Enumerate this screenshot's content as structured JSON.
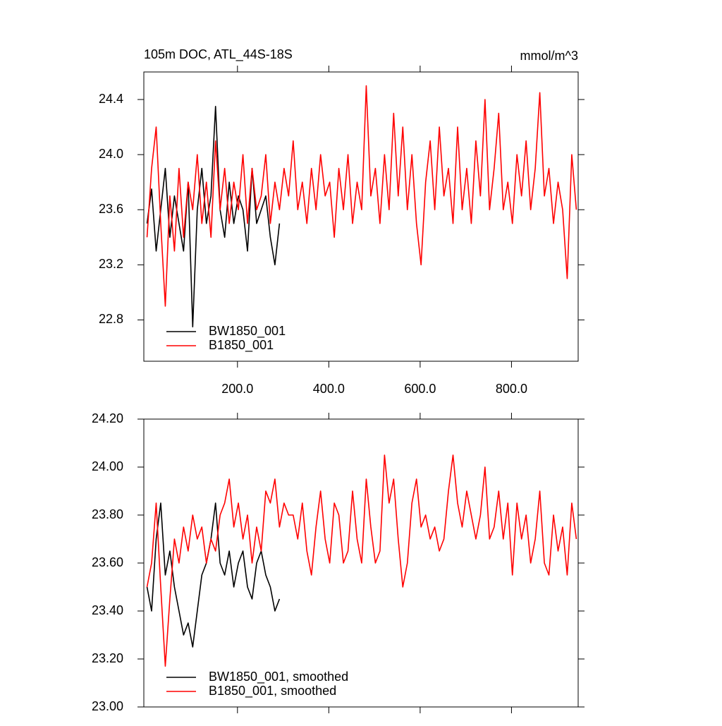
{
  "chart_data": [
    {
      "type": "line",
      "title": "105m DOC, ATL_44S-18S",
      "units": "mmol/m^3",
      "xlim": [
        -5,
        946
      ],
      "ylim": [
        22.5,
        24.6
      ],
      "xticks": [
        {
          "value": 200,
          "label": "200.0"
        },
        {
          "value": 400,
          "label": "400.0"
        },
        {
          "value": 600,
          "label": "600.0"
        },
        {
          "value": 800,
          "label": "800.0"
        }
      ],
      "yticks": [
        {
          "value": 22.8,
          "label": "22.8"
        },
        {
          "value": 23.2,
          "label": "23.2"
        },
        {
          "value": 23.6,
          "label": "23.6"
        },
        {
          "value": 24.0,
          "label": "24.0"
        },
        {
          "value": 24.4,
          "label": "24.4"
        }
      ],
      "legend": "lower left",
      "series": [
        {
          "name": "BW1850_001",
          "color": "#000000",
          "x": [
            2,
            12,
            22,
            32,
            42,
            52,
            62,
            72,
            82,
            92,
            102,
            112,
            122,
            132,
            142,
            152,
            162,
            172,
            182,
            192,
            202,
            212,
            222,
            232,
            242,
            252,
            262,
            272,
            282,
            292
          ],
          "values": [
            23.5,
            23.75,
            23.3,
            23.6,
            23.9,
            23.4,
            23.7,
            23.5,
            23.3,
            23.8,
            22.75,
            23.6,
            23.9,
            23.5,
            23.7,
            24.35,
            23.6,
            23.4,
            23.8,
            23.5,
            23.7,
            23.6,
            23.3,
            23.9,
            23.5,
            23.6,
            23.7,
            23.4,
            23.2,
            23.5
          ]
        },
        {
          "name": "B1850_001",
          "color": "#ff0000",
          "x": [
            2,
            12,
            22,
            32,
            42,
            52,
            62,
            72,
            82,
            92,
            102,
            112,
            122,
            132,
            142,
            152,
            162,
            172,
            182,
            192,
            202,
            212,
            222,
            232,
            242,
            252,
            262,
            272,
            282,
            292,
            302,
            312,
            322,
            332,
            342,
            352,
            362,
            372,
            382,
            392,
            402,
            412,
            422,
            432,
            442,
            452,
            462,
            472,
            482,
            492,
            502,
            512,
            522,
            532,
            542,
            552,
            562,
            572,
            582,
            592,
            602,
            612,
            622,
            632,
            642,
            652,
            662,
            672,
            682,
            692,
            702,
            712,
            722,
            732,
            742,
            752,
            762,
            772,
            782,
            792,
            802,
            812,
            822,
            832,
            842,
            852,
            862,
            872,
            882,
            892,
            902,
            912,
            922,
            932,
            942
          ],
          "values": [
            23.4,
            23.9,
            24.2,
            23.5,
            22.9,
            23.7,
            23.3,
            23.9,
            23.4,
            23.8,
            23.6,
            24.0,
            23.5,
            23.8,
            23.4,
            24.1,
            23.6,
            23.9,
            23.5,
            23.8,
            23.6,
            24.0,
            23.5,
            23.9,
            23.6,
            23.7,
            24.0,
            23.5,
            23.8,
            23.6,
            23.9,
            23.7,
            24.1,
            23.6,
            23.8,
            23.5,
            23.9,
            23.6,
            24.0,
            23.7,
            23.8,
            23.4,
            23.9,
            23.6,
            24.0,
            23.5,
            23.8,
            23.6,
            24.5,
            23.7,
            23.9,
            23.5,
            24.0,
            23.6,
            24.3,
            23.7,
            24.2,
            23.6,
            24.0,
            23.5,
            23.2,
            23.8,
            24.1,
            23.6,
            24.2,
            23.7,
            23.9,
            23.5,
            24.2,
            23.6,
            23.9,
            23.5,
            24.1,
            23.7,
            24.4,
            23.6,
            23.9,
            24.3,
            23.6,
            23.8,
            23.5,
            24.0,
            23.7,
            24.1,
            23.6,
            23.9,
            24.45,
            23.7,
            23.9,
            23.5,
            23.8,
            23.6,
            23.1,
            24.0,
            23.6
          ]
        }
      ]
    },
    {
      "type": "line",
      "xlim": [
        -5,
        946
      ],
      "ylim": [
        23.0,
        24.2
      ],
      "xticks": [
        200,
        400,
        600,
        800
      ],
      "yticks": [
        {
          "value": 23.0,
          "label": "23.00"
        },
        {
          "value": 23.2,
          "label": "23.20"
        },
        {
          "value": 23.4,
          "label": "23.40"
        },
        {
          "value": 23.6,
          "label": "23.60"
        },
        {
          "value": 23.8,
          "label": "23.80"
        },
        {
          "value": 24.0,
          "label": "24.00"
        },
        {
          "value": 24.2,
          "label": "24.20"
        }
      ],
      "legend": "lower left",
      "series": [
        {
          "name": "BW1850_001, smoothed",
          "color": "#000000",
          "x": [
            2,
            12,
            22,
            32,
            42,
            52,
            62,
            72,
            82,
            92,
            102,
            112,
            122,
            132,
            142,
            152,
            162,
            172,
            182,
            192,
            202,
            212,
            222,
            232,
            242,
            252,
            262,
            272,
            282,
            292
          ],
          "values": [
            23.5,
            23.4,
            23.7,
            23.85,
            23.55,
            23.65,
            23.5,
            23.4,
            23.3,
            23.35,
            23.25,
            23.4,
            23.55,
            23.6,
            23.7,
            23.85,
            23.6,
            23.55,
            23.65,
            23.5,
            23.6,
            23.65,
            23.5,
            23.45,
            23.6,
            23.65,
            23.55,
            23.5,
            23.4,
            23.45
          ]
        },
        {
          "name": "B1850_001, smoothed",
          "color": "#ff0000",
          "x": [
            2,
            12,
            22,
            32,
            42,
            52,
            62,
            72,
            82,
            92,
            102,
            112,
            122,
            132,
            142,
            152,
            162,
            172,
            182,
            192,
            202,
            212,
            222,
            232,
            242,
            252,
            262,
            272,
            282,
            292,
            302,
            312,
            322,
            332,
            342,
            352,
            362,
            372,
            382,
            392,
            402,
            412,
            422,
            432,
            442,
            452,
            462,
            472,
            482,
            492,
            502,
            512,
            522,
            532,
            542,
            552,
            562,
            572,
            582,
            592,
            602,
            612,
            622,
            632,
            642,
            652,
            662,
            672,
            682,
            692,
            702,
            712,
            722,
            732,
            742,
            752,
            762,
            772,
            782,
            792,
            802,
            812,
            822,
            832,
            842,
            852,
            862,
            872,
            882,
            892,
            902,
            912,
            922,
            932,
            942
          ],
          "values": [
            23.5,
            23.6,
            23.85,
            23.5,
            23.17,
            23.45,
            23.7,
            23.6,
            23.75,
            23.65,
            23.8,
            23.7,
            23.75,
            23.6,
            23.7,
            23.65,
            23.8,
            23.85,
            23.95,
            23.75,
            23.85,
            23.7,
            23.8,
            23.6,
            23.75,
            23.65,
            23.9,
            23.85,
            23.95,
            23.75,
            23.85,
            23.8,
            23.8,
            23.7,
            23.85,
            23.65,
            23.55,
            23.75,
            23.9,
            23.7,
            23.6,
            23.85,
            23.8,
            23.6,
            23.65,
            23.9,
            23.7,
            23.6,
            23.95,
            23.75,
            23.6,
            23.65,
            24.05,
            23.85,
            23.95,
            23.7,
            23.5,
            23.6,
            23.85,
            23.95,
            23.75,
            23.8,
            23.7,
            23.75,
            23.65,
            23.7,
            23.9,
            24.05,
            23.85,
            23.75,
            23.9,
            23.8,
            23.7,
            23.8,
            24.0,
            23.7,
            23.75,
            23.9,
            23.7,
            23.85,
            23.55,
            23.85,
            23.7,
            23.8,
            23.6,
            23.7,
            23.9,
            23.6,
            23.55,
            23.8,
            23.65,
            23.75,
            23.55,
            23.85,
            23.7
          ]
        }
      ]
    }
  ]
}
